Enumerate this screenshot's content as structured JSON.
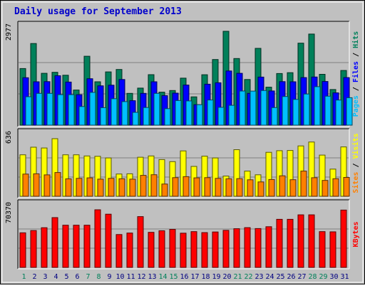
{
  "colors": {
    "frame": "#c0c0c0",
    "title": "#0000cc",
    "hits": "#00805a",
    "files": "#0000ff",
    "pages": "#00c0ff",
    "visits": "#ffff00",
    "sites": "#ff8000",
    "kbytes": "#ff0000",
    "weekend_label": "#00805a",
    "weekday_label": "#000080"
  },
  "chart_data": {
    "type": "bar",
    "title": "Daily usage for September 2013",
    "days": [
      "1",
      "2",
      "3",
      "4",
      "5",
      "6",
      "7",
      "8",
      "9",
      "10",
      "11",
      "12",
      "13",
      "14",
      "15",
      "16",
      "17",
      "18",
      "19",
      "20",
      "21",
      "22",
      "23",
      "24",
      "25",
      "26",
      "27",
      "28",
      "29",
      "30",
      "31"
    ],
    "weekend_days": [
      "1",
      "7",
      "8",
      "14",
      "15",
      "21",
      "22",
      "28",
      "29"
    ],
    "panels": [
      {
        "id": "hits_files_pages",
        "ymax_label": "2977",
        "ymax": 2977,
        "legend": [
          "Pages",
          "/",
          "Files",
          "/",
          "Hits"
        ],
        "series": [
          {
            "name": "Hits",
            "color_key": "hits",
            "values": [
              1795,
              2588,
              1645,
              1676,
              1583,
              1113,
              2185,
              1376,
              1689,
              1767,
              1007,
              1176,
              1601,
              1047,
              1098,
              1491,
              897,
              1600,
              2081,
              2977,
              2113,
              1449,
              2436,
              1205,
              1637,
              1665,
              2601,
              2890,
              1612,
              1130,
              1734
            ]
          },
          {
            "name": "Files",
            "color_key": "files",
            "values": [
              1504,
              1376,
              1380,
              1567,
              1367,
              966,
              1473,
              1247,
              1267,
              1449,
              775,
              1007,
              1376,
              937,
              1014,
              1272,
              650,
              1298,
              1344,
              1718,
              1645,
              1007,
              1525,
              1084,
              1380,
              1376,
              1508,
              1527,
              1384,
              1023,
              1508
            ]
          },
          {
            "name": "Pages",
            "color_key": "pages",
            "values": [
              901,
              1007,
              1007,
              967,
              968,
              590,
              1040,
              554,
              840,
              746,
              406,
              560,
              1007,
              524,
              780,
              768,
              650,
              799,
              567,
              630,
              1083,
              1080,
              1098,
              556,
              910,
              817,
              988,
              1219,
              921,
              796,
              870
            ]
          }
        ]
      },
      {
        "id": "visits_sites",
        "ymax_label": "636",
        "ymax": 636,
        "legend": [
          "Sites",
          "/",
          "Visits"
        ],
        "series": [
          {
            "name": "Visits",
            "color_key": "visits",
            "values": [
              458,
              542,
              533,
              636,
              458,
              458,
              445,
              441,
              423,
              246,
              248,
              431,
              445,
              405,
              382,
              501,
              330,
              443,
              423,
              223,
              514,
              278,
              237,
              485,
              503,
              506,
              556,
              599,
              455,
              300,
              545
            ]
          },
          {
            "name": "Sites",
            "color_key": "sites",
            "values": [
              245,
              248,
              236,
              262,
              192,
              198,
              203,
              189,
              198,
              193,
              189,
              231,
              238,
              135,
              206,
              217,
              203,
              206,
              198,
              193,
              195,
              182,
              159,
              185,
              226,
              183,
              278,
              205,
              175,
              194,
              208
            ]
          }
        ]
      },
      {
        "id": "kbytes",
        "ymax_label": "70370",
        "ymax": 70370,
        "legend": [
          "KBytes"
        ],
        "series": [
          {
            "name": "KBytes",
            "color_key": "kbytes",
            "values": [
              42200,
              45000,
              48500,
              60800,
              51500,
              51500,
              51500,
              70370,
              65000,
              40100,
              42000,
              62000,
              42800,
              44700,
              46400,
              41800,
              43700,
              42500,
              43300,
              45300,
              47300,
              48600,
              47400,
              49700,
              58700,
              58700,
              64200,
              64200,
              43700,
              43400,
              70000
            ]
          }
        ]
      }
    ],
    "grid": true
  }
}
